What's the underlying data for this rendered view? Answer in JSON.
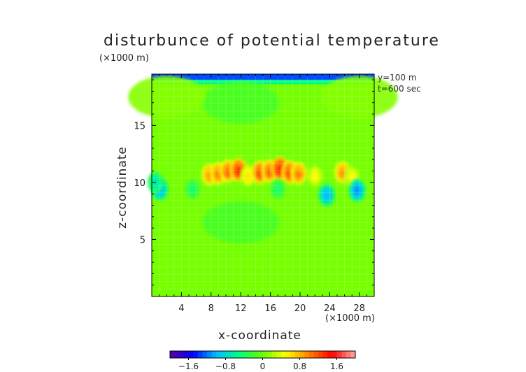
{
  "chart_data": {
    "type": "heatmap",
    "title": "disturbunce of potential temperature",
    "xlabel": "x-coordinate",
    "ylabel": "z-coordinate",
    "x_unit": "(×1000 m)",
    "y_unit": "(×1000 m)",
    "annotations": [
      "y=100 m",
      "t=600 sec"
    ],
    "xlim": [
      0,
      30
    ],
    "ylim": [
      0,
      19.5
    ],
    "x_ticks": [
      4,
      8,
      12,
      16,
      20,
      24,
      28
    ],
    "y_ticks": [
      5,
      10,
      15
    ],
    "colorbar": {
      "range": [
        -2.0,
        2.0
      ],
      "tick_values": [
        -1.6,
        -0.8,
        0,
        0.8,
        1.6
      ],
      "tick_labels": [
        "−1.6",
        "−0.8",
        "0",
        "0.8",
        "1.6"
      ],
      "palette": [
        "#5a00a0",
        "#0000ff",
        "#00bfff",
        "#00ff7f",
        "#66ff00",
        "#ffff00",
        "#ff8000",
        "#ff0000",
        "#ffaaaa"
      ]
    },
    "features": [
      {
        "x": 7.8,
        "z": 10.7,
        "value": 0.9
      },
      {
        "x": 9.0,
        "z": 10.8,
        "value": 1.0
      },
      {
        "x": 10.3,
        "z": 11.0,
        "value": 1.1
      },
      {
        "x": 11.7,
        "z": 11.1,
        "value": 1.3
      },
      {
        "x": 13.0,
        "z": 10.6,
        "value": 0.6
      },
      {
        "x": 14.6,
        "z": 10.9,
        "value": 1.2
      },
      {
        "x": 15.9,
        "z": 11.0,
        "value": 1.1
      },
      {
        "x": 17.3,
        "z": 11.2,
        "value": 1.4
      },
      {
        "x": 18.6,
        "z": 10.9,
        "value": 1.2
      },
      {
        "x": 19.8,
        "z": 10.8,
        "value": 1.0
      },
      {
        "x": 22.0,
        "z": 10.6,
        "value": 0.5
      },
      {
        "x": 25.7,
        "z": 10.9,
        "value": 0.9
      },
      {
        "x": 27.0,
        "z": 10.5,
        "value": 0.5
      },
      {
        "x": 1.1,
        "z": 9.4,
        "value": -1.0
      },
      {
        "x": 0.5,
        "z": 10.0,
        "value": -0.7
      },
      {
        "x": 23.6,
        "z": 8.9,
        "value": -1.0
      },
      {
        "x": 27.7,
        "z": 9.3,
        "value": -1.1
      },
      {
        "x": 5.5,
        "z": 9.4,
        "value": -0.4
      },
      {
        "x": 17.0,
        "z": 9.4,
        "value": -0.4
      },
      {
        "x": 12.0,
        "z": 17.0,
        "value": -0.15
      },
      {
        "x": 12.0,
        "z": 6.5,
        "value": -0.15
      },
      {
        "x": 2.0,
        "z": 17.5,
        "value": 0.1
      },
      {
        "x": 28.0,
        "z": 17.5,
        "value": 0.1
      }
    ],
    "top_band": {
      "z_from": 19.0,
      "z_to": 19.5,
      "value": -1.3
    }
  }
}
